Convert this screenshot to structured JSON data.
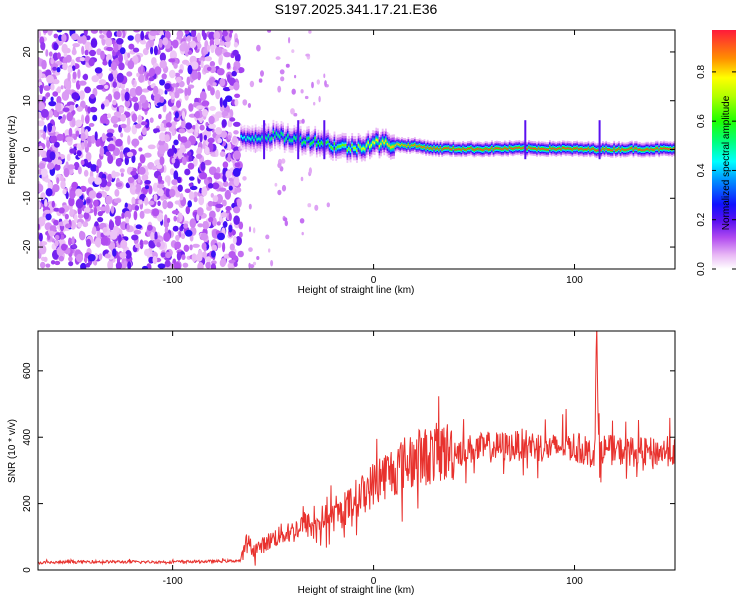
{
  "title": "S197.2025.341.17.21.E36",
  "chart_data": [
    {
      "type": "heatmap",
      "xlabel": "Height of straight line (km)",
      "ylabel": "Frequency (Hz)",
      "xlim": [
        -167,
        150
      ],
      "ylim": [
        -24.5,
        24.5
      ],
      "xticks": [
        -100,
        0,
        100
      ],
      "yticks": [
        -20,
        -10,
        0,
        10,
        20
      ],
      "colorbar": {
        "label": "Normalized spectral amplitude",
        "range": [
          0,
          0.97
        ],
        "ticks": [
          0.0,
          0.2,
          0.4,
          0.6,
          0.8
        ]
      },
      "noise_region_x": [
        -167,
        -66
      ],
      "signal_track": {
        "x": [
          -66,
          -60,
          -50,
          -40,
          -30,
          -20,
          -10,
          0,
          10,
          20,
          30,
          50,
          70,
          90,
          110,
          130,
          150
        ],
        "freq": [
          2.0,
          2.5,
          2.8,
          2.2,
          1.8,
          0.8,
          0.2,
          1.4,
          1.0,
          0.8,
          0.2,
          0.1,
          0.2,
          0.2,
          0.0,
          0.1,
          0.1
        ],
        "peak_amplitude": [
          0.45,
          0.5,
          0.55,
          0.55,
          0.6,
          0.65,
          0.7,
          0.8,
          0.85,
          0.9,
          0.95,
          0.95,
          0.95,
          0.95,
          0.95,
          0.95,
          0.95
        ]
      }
    },
    {
      "type": "line",
      "xlabel": "Height of straight line (km)",
      "ylabel": "SNR (10 * v/v)",
      "xlim": [
        -167,
        150
      ],
      "ylim": [
        0,
        720
      ],
      "xticks": [
        -100,
        0,
        100
      ],
      "yticks": [
        0,
        200,
        400,
        600
      ],
      "color": "#e8322e",
      "series": [
        {
          "name": "SNR",
          "x": [
            -167,
            -140,
            -110,
            -80,
            -66,
            -63,
            -60,
            -55,
            -50,
            -45,
            -40,
            -35,
            -30,
            -25,
            -20,
            -15,
            -10,
            -5,
            0,
            5,
            10,
            15,
            20,
            25,
            30,
            40,
            50,
            60,
            70,
            75,
            80,
            85,
            90,
            95,
            100,
            105,
            108,
            110,
            111,
            112,
            115,
            120,
            130,
            140,
            150
          ],
          "values": [
            22,
            25,
            24,
            26,
            28,
            90,
            60,
            75,
            95,
            110,
            115,
            140,
            130,
            155,
            160,
            175,
            210,
            230,
            260,
            285,
            300,
            320,
            330,
            340,
            350,
            360,
            365,
            370,
            372,
            380,
            375,
            370,
            365,
            380,
            370,
            360,
            350,
            360,
            700,
            370,
            365,
            360,
            355,
            355,
            358
          ]
        }
      ]
    }
  ]
}
